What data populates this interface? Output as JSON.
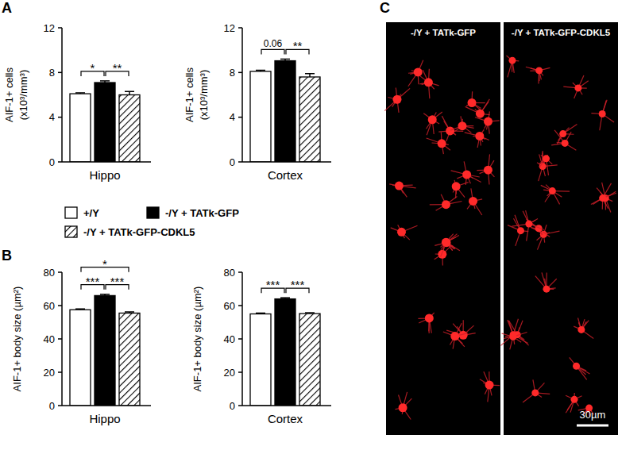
{
  "chart_data": [
    {
      "type": "bar",
      "panel": "A",
      "ylabel": [
        "AIF-1+ cells",
        "(x10³/mm³)"
      ],
      "categories": [
        "Hippo"
      ],
      "ylim": [
        0,
        12
      ],
      "yticks": [
        0,
        4,
        8,
        12
      ],
      "series": [
        {
          "name": "+/Y",
          "color": "#ffffff",
          "line_style": "solid",
          "values": [
            6.1
          ],
          "error": [
            0.08
          ]
        },
        {
          "name": "-/Y + TATk-GFP",
          "color": "#000000",
          "line_style": "solid",
          "values": [
            7.1
          ],
          "error": [
            0.15
          ]
        },
        {
          "name": "-/Y + TATk-GFP-CDKL5",
          "color": "#ffffff",
          "line_style": "hatched",
          "values": [
            6.0
          ],
          "error": [
            0.3
          ]
        }
      ],
      "annotations": [
        {
          "text": "*",
          "bars": [
            0,
            1
          ]
        },
        {
          "text": "**",
          "bars": [
            1,
            2
          ]
        }
      ]
    },
    {
      "type": "bar",
      "ylabel": [
        "AIF-1+ cells",
        "(x10³/mm³)"
      ],
      "categories": [
        "Cortex"
      ],
      "ylim": [
        0,
        12
      ],
      "yticks": [
        0,
        4,
        8,
        12
      ],
      "series": [
        {
          "name": "+/Y",
          "color": "#ffffff",
          "line_style": "solid",
          "values": [
            8.1
          ],
          "error": [
            0.1
          ]
        },
        {
          "name": "-/Y + TATk-GFP",
          "color": "#000000",
          "line_style": "solid",
          "values": [
            9.05
          ],
          "error": [
            0.15
          ]
        },
        {
          "name": "-/Y + TATk-GFP-CDKL5",
          "color": "#ffffff",
          "line_style": "hatched",
          "values": [
            7.6
          ],
          "error": [
            0.3
          ]
        }
      ],
      "annotations": [
        {
          "text": "0.06",
          "bars": [
            0,
            1
          ]
        },
        {
          "text": "**",
          "bars": [
            1,
            2
          ]
        }
      ]
    },
    {
      "type": "bar",
      "panel": "B",
      "ylabel": [
        "AIF-1+ body size (µm²)"
      ],
      "categories": [
        "Hippo"
      ],
      "ylim": [
        0,
        80
      ],
      "yticks": [
        0,
        20,
        40,
        60,
        80
      ],
      "series": [
        {
          "name": "+/Y",
          "color": "#ffffff",
          "line_style": "solid",
          "values": [
            57.5
          ],
          "error": [
            0.5
          ]
        },
        {
          "name": "-/Y + TATk-GFP",
          "color": "#000000",
          "line_style": "solid",
          "values": [
            66
          ],
          "error": [
            0.8
          ]
        },
        {
          "name": "-/Y + TATk-GFP-CDKL5",
          "color": "#ffffff",
          "line_style": "hatched",
          "values": [
            55.5
          ],
          "error": [
            0.7
          ]
        }
      ],
      "annotations": [
        {
          "text": "***",
          "bars": [
            0,
            1
          ]
        },
        {
          "text": "***",
          "bars": [
            1,
            2
          ]
        },
        {
          "text": "*",
          "bars": [
            0,
            2
          ]
        }
      ]
    },
    {
      "type": "bar",
      "ylabel": [
        "AIF-1+ body size (µm²)"
      ],
      "categories": [
        "Cortex"
      ],
      "ylim": [
        0,
        80
      ],
      "yticks": [
        0,
        20,
        40,
        60,
        80
      ],
      "series": [
        {
          "name": "+/Y",
          "color": "#ffffff",
          "line_style": "solid",
          "values": [
            55
          ],
          "error": [
            0.5
          ]
        },
        {
          "name": "-/Y + TATk-GFP",
          "color": "#000000",
          "line_style": "solid",
          "values": [
            64
          ],
          "error": [
            0.7
          ]
        },
        {
          "name": "-/Y + TATk-GFP-CDKL5",
          "color": "#ffffff",
          "line_style": "hatched",
          "values": [
            55.2
          ],
          "error": [
            0.5
          ]
        }
      ],
      "annotations": [
        {
          "text": "***",
          "bars": [
            0,
            1
          ]
        },
        {
          "text": "***",
          "bars": [
            1,
            2
          ]
        }
      ]
    }
  ],
  "image_panel": {
    "panel": "C",
    "captions": [
      "-/Y + TATk-GFP",
      "-/Y + TATk-GFP-CDKL5"
    ],
    "scale_bar": "30µm"
  }
}
